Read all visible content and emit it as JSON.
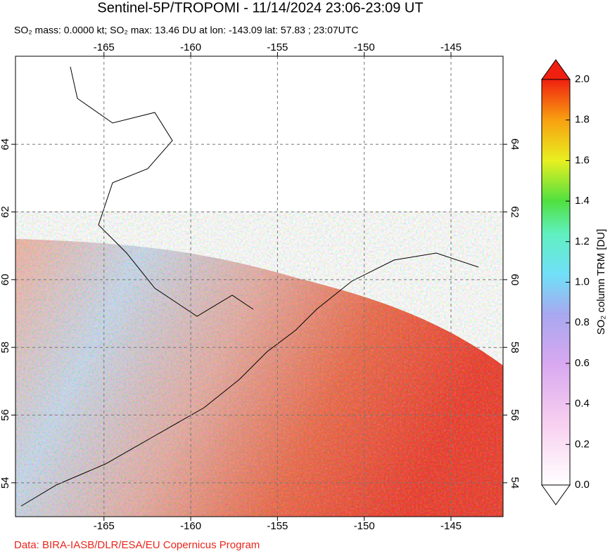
{
  "header": {
    "title": "Sentinel-5P/TROPOMI - 11/14/2024 23:06-23:09 UT",
    "subtitle": "SO₂ mass: 0.0000 kt; SO₂ max: 13.46 DU at lon: -143.09 lat: 57.83 ; 23:07UTC"
  },
  "map": {
    "xlim": [
      -170.1,
      -142
    ],
    "ylim": [
      53,
      66.6
    ],
    "xticks": [
      -165,
      -160,
      -155,
      -150,
      -145
    ],
    "yticks": [
      54,
      56,
      58,
      60,
      62,
      64
    ]
  },
  "colorbar": {
    "label": "SO₂ column TRM [DU]",
    "lim": [
      0,
      2
    ],
    "ticks": [
      {
        "value": 0,
        "label": "0.0"
      },
      {
        "value": 0.2,
        "label": "0.2"
      },
      {
        "value": 0.4,
        "label": "0.4"
      },
      {
        "value": 0.6,
        "label": "0.6"
      },
      {
        "value": 0.8,
        "label": "0.8"
      },
      {
        "value": 1,
        "label": "1.0"
      },
      {
        "value": 1.2,
        "label": "1.2"
      },
      {
        "value": 1.4,
        "label": "1.4"
      },
      {
        "value": 1.6,
        "label": "1.6"
      },
      {
        "value": 1.8,
        "label": "1.8"
      },
      {
        "value": 2,
        "label": "2.0"
      }
    ]
  },
  "footer": {
    "credit": "Data: BIRA-IASB/DLR/ESA/EU Copernicus Program"
  }
}
